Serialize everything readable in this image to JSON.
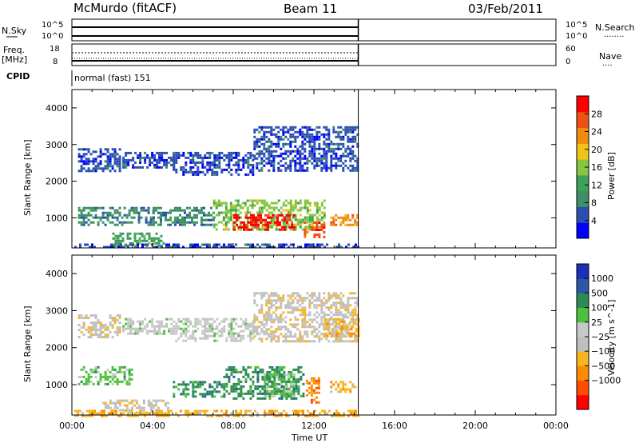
{
  "header": {
    "radar": "McMurdo (fitACF)",
    "beam": "Beam 11",
    "date": "03/Feb/2011"
  },
  "top_panels": {
    "nsky": {
      "left_label": "N.Sky",
      "left_ticks": [
        "10^5",
        "10^0"
      ],
      "right_ticks": [
        "10^5",
        "10^0"
      ],
      "right_label": "N.Search",
      "right_legend": "........"
    },
    "freq": {
      "left_label_1": "Freq.",
      "left_label_2": "[MHz]",
      "left_ticks": [
        "18",
        "8"
      ],
      "right_ticks": [
        "60",
        "0"
      ],
      "right_label": "Nave",
      "right_legend": "...."
    },
    "cpid": {
      "label": "CPID",
      "value": "normal (fast) 151"
    }
  },
  "colors": {
    "power": [
      "#0000ff",
      "#2b4fb0",
      "#3f8f66",
      "#3ca25a",
      "#86c640",
      "#f2c21a",
      "#f08a10",
      "#ef5015",
      "#ff0000"
    ],
    "velocity": [
      "#ff0000",
      "#ff4c00",
      "#ff8c00",
      "#f7b520",
      "#bfbfbf",
      "#c8c8c8",
      "#4cc23a",
      "#2e8b57",
      "#2b57a8",
      "#1b2fb8"
    ]
  },
  "chart_data": [
    {
      "type": "heatmap",
      "name": "power-panel",
      "quantity": "Power",
      "ylabel": "Slant Range [km]",
      "xlabel": "Time UT",
      "xlim_hours": [
        0,
        24
      ],
      "ylim_km": [
        180,
        4500
      ],
      "x_ticks": [
        "00:00",
        "04:00",
        "08:00",
        "12:00",
        "16:00",
        "20:00",
        "00:00"
      ],
      "y_ticks": [
        1000,
        2000,
        3000,
        4000
      ],
      "data_end_hour": 14.2,
      "colorbar": {
        "label": "Power [dB]",
        "ticks": [
          4,
          8,
          12,
          16,
          20,
          24,
          28
        ],
        "range": [
          0,
          32
        ]
      },
      "echo_regions": [
        {
          "t0": 0.3,
          "t1": 2.4,
          "r0": 2300,
          "r1": 2900,
          "level": 1
        },
        {
          "t0": 2.5,
          "t1": 5.0,
          "r0": 2400,
          "r1": 2800,
          "level": 1
        },
        {
          "t0": 5.0,
          "t1": 9.0,
          "r0": 2200,
          "r1": 2800,
          "level": 1
        },
        {
          "t0": 9.0,
          "t1": 14.2,
          "r0": 2300,
          "r1": 3500,
          "level": 1
        },
        {
          "t0": 0.3,
          "t1": 4.0,
          "r0": 800,
          "r1": 1300,
          "level": 2
        },
        {
          "t0": 4.0,
          "t1": 7.0,
          "r0": 800,
          "r1": 1300,
          "level": 2
        },
        {
          "t0": 7.0,
          "t1": 12.5,
          "r0": 650,
          "r1": 1500,
          "level": 4
        },
        {
          "t0": 8.0,
          "t1": 11.0,
          "r0": 650,
          "r1": 1100,
          "level": 8
        },
        {
          "t0": 11.5,
          "t1": 12.5,
          "r0": 500,
          "r1": 900,
          "level": 7
        },
        {
          "t0": 12.8,
          "t1": 14.2,
          "r0": 800,
          "r1": 1100,
          "level": 6
        },
        {
          "t0": 2.0,
          "t1": 4.5,
          "r0": 250,
          "r1": 600,
          "level": 3
        },
        {
          "t0": 0.0,
          "t1": 14.2,
          "r0": 180,
          "r1": 300,
          "level": 1
        }
      ]
    },
    {
      "type": "heatmap",
      "name": "velocity-panel",
      "quantity": "Velocity",
      "ylabel": "Slant Range [km]",
      "xlabel": "Time UT",
      "xlim_hours": [
        0,
        24
      ],
      "ylim_km": [
        180,
        4500
      ],
      "x_ticks": [
        "00:00",
        "04:00",
        "08:00",
        "12:00",
        "16:00",
        "20:00",
        "00:00"
      ],
      "y_ticks": [
        1000,
        2000,
        3000,
        4000
      ],
      "data_end_hour": 14.2,
      "colorbar": {
        "label": "Velocity [m s^-1]",
        "ticks": [
          "1000",
          "500",
          "100",
          "25",
          "−25",
          "−100",
          "−500",
          "−1000"
        ]
      },
      "echo_regions": [
        {
          "t0": 0.3,
          "t1": 2.4,
          "r0": 2300,
          "r1": 2900,
          "level": 4
        },
        {
          "t0": 2.5,
          "t1": 5.0,
          "r0": 2400,
          "r1": 2800,
          "level": 5
        },
        {
          "t0": 5.0,
          "t1": 9.0,
          "r0": 2200,
          "r1": 2800,
          "level": 5
        },
        {
          "t0": 9.0,
          "t1": 14.2,
          "r0": 2200,
          "r1": 3500,
          "level": 4
        },
        {
          "t0": 12.5,
          "t1": 14.2,
          "r0": 2300,
          "r1": 2800,
          "level": 3
        },
        {
          "t0": 0.3,
          "t1": 3.0,
          "r0": 1000,
          "r1": 1500,
          "level": 6
        },
        {
          "t0": 5.0,
          "t1": 7.5,
          "r0": 700,
          "r1": 1100,
          "level": 7
        },
        {
          "t0": 7.5,
          "t1": 11.5,
          "r0": 650,
          "r1": 1500,
          "level": 7
        },
        {
          "t0": 9.5,
          "t1": 11.0,
          "r0": 700,
          "r1": 1300,
          "level": 6
        },
        {
          "t0": 11.6,
          "t1": 12.3,
          "r0": 500,
          "r1": 1200,
          "level": 2
        },
        {
          "t0": 12.8,
          "t1": 14.2,
          "r0": 800,
          "r1": 1100,
          "level": 3
        },
        {
          "t0": 1.5,
          "t1": 4.8,
          "r0": 250,
          "r1": 600,
          "level": 4
        },
        {
          "t0": 0.0,
          "t1": 14.2,
          "r0": 180,
          "r1": 320,
          "level": 3
        }
      ]
    }
  ]
}
